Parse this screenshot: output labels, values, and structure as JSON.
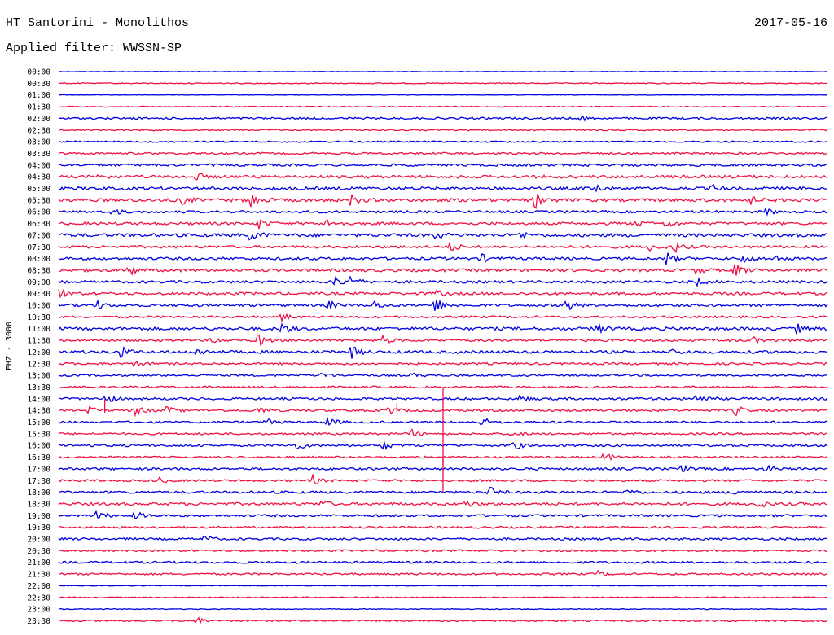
{
  "header": {
    "title": "HT Santorini - Monolithos",
    "date": "2017-05-16",
    "filter": "Applied filter: WWSSN-SP"
  },
  "chart_data": {
    "type": "line",
    "ylabel": "EHZ - 3000",
    "time_labels": [
      "00:00",
      "00:30",
      "01:00",
      "01:30",
      "02:00",
      "02:30",
      "03:00",
      "03:30",
      "04:00",
      "04:30",
      "05:00",
      "05:30",
      "06:00",
      "06:30",
      "07:00",
      "07:30",
      "08:00",
      "08:30",
      "09:00",
      "09:30",
      "10:00",
      "10:30",
      "11:00",
      "11:30",
      "12:00",
      "12:30",
      "13:00",
      "13:30",
      "14:00",
      "14:30",
      "15:00",
      "15:30",
      "16:00",
      "16:30",
      "17:00",
      "17:30",
      "18:00",
      "18:30",
      "19:00",
      "19:30",
      "20:00",
      "20:30",
      "21:00",
      "21:30",
      "22:00",
      "22:30",
      "23:00",
      "23:30"
    ],
    "series_colors": [
      "#0000e0",
      "#ee1144"
    ],
    "noise_level": [
      0.3,
      0.6,
      0.3,
      0.6,
      1.2,
      0.9,
      0.9,
      1.2,
      1.5,
      1.8,
      1.8,
      2.0,
      1.5,
      1.6,
      2.0,
      1.6,
      1.6,
      1.8,
      1.6,
      1.6,
      1.6,
      1.3,
      1.8,
      1.5,
      1.8,
      1.3,
      1.2,
      1.2,
      1.4,
      1.4,
      1.3,
      1.2,
      1.4,
      1.2,
      1.4,
      1.3,
      1.5,
      1.6,
      1.4,
      1.2,
      1.3,
      1.2,
      1.3,
      1.2,
      0.4,
      0.6,
      0.5,
      1.0
    ],
    "events": [
      {
        "row": 4,
        "t": 0.68,
        "amp": 3
      },
      {
        "row": 9,
        "t": 0.05,
        "amp": 4
      },
      {
        "row": 9,
        "t": 0.18,
        "amp": 4
      },
      {
        "row": 10,
        "t": 0.7,
        "amp": 5
      },
      {
        "row": 10,
        "t": 0.85,
        "amp": 4
      },
      {
        "row": 11,
        "t": 0.16,
        "amp": 5
      },
      {
        "row": 11,
        "t": 0.25,
        "amp": 10
      },
      {
        "row": 11,
        "t": 0.38,
        "amp": 7
      },
      {
        "row": 11,
        "t": 0.62,
        "amp": 9
      },
      {
        "row": 11,
        "t": 0.9,
        "amp": 4
      },
      {
        "row": 12,
        "t": 0.07,
        "amp": 4
      },
      {
        "row": 12,
        "t": 0.92,
        "amp": 4
      },
      {
        "row": 13,
        "t": 0.26,
        "amp": 6
      },
      {
        "row": 13,
        "t": 0.35,
        "amp": 6
      },
      {
        "row": 13,
        "t": 0.75,
        "amp": 4
      },
      {
        "row": 13,
        "t": 0.79,
        "amp": 5
      },
      {
        "row": 14,
        "t": 0.25,
        "amp": 8
      },
      {
        "row": 14,
        "t": 0.49,
        "amp": 4
      },
      {
        "row": 14,
        "t": 0.6,
        "amp": 4
      },
      {
        "row": 15,
        "t": 0.51,
        "amp": 6
      },
      {
        "row": 15,
        "t": 0.77,
        "amp": 5
      },
      {
        "row": 15,
        "t": 0.8,
        "amp": 7
      },
      {
        "row": 16,
        "t": 0.55,
        "amp": 5
      },
      {
        "row": 16,
        "t": 0.79,
        "amp": 8
      },
      {
        "row": 16,
        "t": 0.89,
        "amp": 5
      },
      {
        "row": 16,
        "t": 0.93,
        "amp": 4
      },
      {
        "row": 17,
        "t": 0.09,
        "amp": 8
      },
      {
        "row": 17,
        "t": 0.83,
        "amp": 4
      },
      {
        "row": 17,
        "t": 0.88,
        "amp": 8
      },
      {
        "row": 18,
        "t": 0.36,
        "amp": 6
      },
      {
        "row": 18,
        "t": 0.38,
        "amp": 8
      },
      {
        "row": 18,
        "t": 0.83,
        "amp": 4
      },
      {
        "row": 19,
        "t": 0.0,
        "amp": 7
      },
      {
        "row": 19,
        "t": 0.49,
        "amp": 4
      },
      {
        "row": 20,
        "t": 0.05,
        "amp": 5
      },
      {
        "row": 20,
        "t": 0.35,
        "amp": 6
      },
      {
        "row": 20,
        "t": 0.41,
        "amp": 5
      },
      {
        "row": 20,
        "t": 0.49,
        "amp": 10
      },
      {
        "row": 20,
        "t": 0.66,
        "amp": 8
      },
      {
        "row": 21,
        "t": 0.29,
        "amp": 5
      },
      {
        "row": 22,
        "t": 0.29,
        "amp": 7
      },
      {
        "row": 22,
        "t": 0.7,
        "amp": 6
      },
      {
        "row": 22,
        "t": 0.96,
        "amp": 6
      },
      {
        "row": 23,
        "t": 0.2,
        "amp": 4
      },
      {
        "row": 23,
        "t": 0.26,
        "amp": 8
      },
      {
        "row": 23,
        "t": 0.42,
        "amp": 6
      },
      {
        "row": 23,
        "t": 0.9,
        "amp": 5
      },
      {
        "row": 24,
        "t": 0.08,
        "amp": 7
      },
      {
        "row": 24,
        "t": 0.18,
        "amp": 4
      },
      {
        "row": 24,
        "t": 0.38,
        "amp": 8
      },
      {
        "row": 24,
        "t": 0.8,
        "amp": 4
      },
      {
        "row": 25,
        "t": 0.1,
        "amp": 4
      },
      {
        "row": 26,
        "t": 0.34,
        "amp": 5
      },
      {
        "row": 26,
        "t": 0.46,
        "amp": 3
      },
      {
        "row": 28,
        "t": 0.06,
        "amp": 7
      },
      {
        "row": 28,
        "t": 0.6,
        "amp": 4
      },
      {
        "row": 28,
        "t": 0.83,
        "amp": 6
      },
      {
        "row": 29,
        "t": 0.04,
        "amp": 5
      },
      {
        "row": 29,
        "t": 0.1,
        "amp": 7
      },
      {
        "row": 29,
        "t": 0.14,
        "amp": 5
      },
      {
        "row": 29,
        "t": 0.26,
        "amp": 5
      },
      {
        "row": 29,
        "t": 0.43,
        "amp": 5
      },
      {
        "row": 29,
        "t": 0.88,
        "amp": 7
      },
      {
        "row": 30,
        "t": 0.27,
        "amp": 4
      },
      {
        "row": 30,
        "t": 0.35,
        "amp": 6
      },
      {
        "row": 30,
        "t": 0.55,
        "amp": 7
      },
      {
        "row": 31,
        "t": 0.46,
        "amp": 5
      },
      {
        "row": 31,
        "t": 0.59,
        "amp": 4
      },
      {
        "row": 32,
        "t": 0.31,
        "amp": 5
      },
      {
        "row": 32,
        "t": 0.42,
        "amp": 6
      },
      {
        "row": 32,
        "t": 0.59,
        "amp": 6
      },
      {
        "row": 33,
        "t": 0.71,
        "amp": 6
      },
      {
        "row": 34,
        "t": 0.81,
        "amp": 4
      },
      {
        "row": 34,
        "t": 0.92,
        "amp": 5
      },
      {
        "row": 35,
        "t": 0.13,
        "amp": 4
      },
      {
        "row": 35,
        "t": 0.33,
        "amp": 6
      },
      {
        "row": 36,
        "t": 0.56,
        "amp": 7
      },
      {
        "row": 36,
        "t": 0.74,
        "amp": 5
      },
      {
        "row": 36,
        "t": 0.88,
        "amp": 4
      },
      {
        "row": 37,
        "t": 0.34,
        "amp": 5
      },
      {
        "row": 37,
        "t": 0.53,
        "amp": 4
      },
      {
        "row": 37,
        "t": 0.91,
        "amp": 5
      },
      {
        "row": 38,
        "t": 0.05,
        "amp": 7
      },
      {
        "row": 38,
        "t": 0.1,
        "amp": 5
      },
      {
        "row": 40,
        "t": 0.19,
        "amp": 5
      },
      {
        "row": 43,
        "t": 0.7,
        "amp": 4
      },
      {
        "row": 47,
        "t": 0.18,
        "amp": 4
      }
    ],
    "spikes": [
      {
        "row": 27,
        "t": 0.5,
        "amp": -130
      },
      {
        "row": 29,
        "t": 0.06,
        "amp": 14
      },
      {
        "row": 29,
        "t": 0.44,
        "amp": 9
      },
      {
        "row": 33,
        "t": 0.5,
        "amp": -10
      }
    ]
  }
}
